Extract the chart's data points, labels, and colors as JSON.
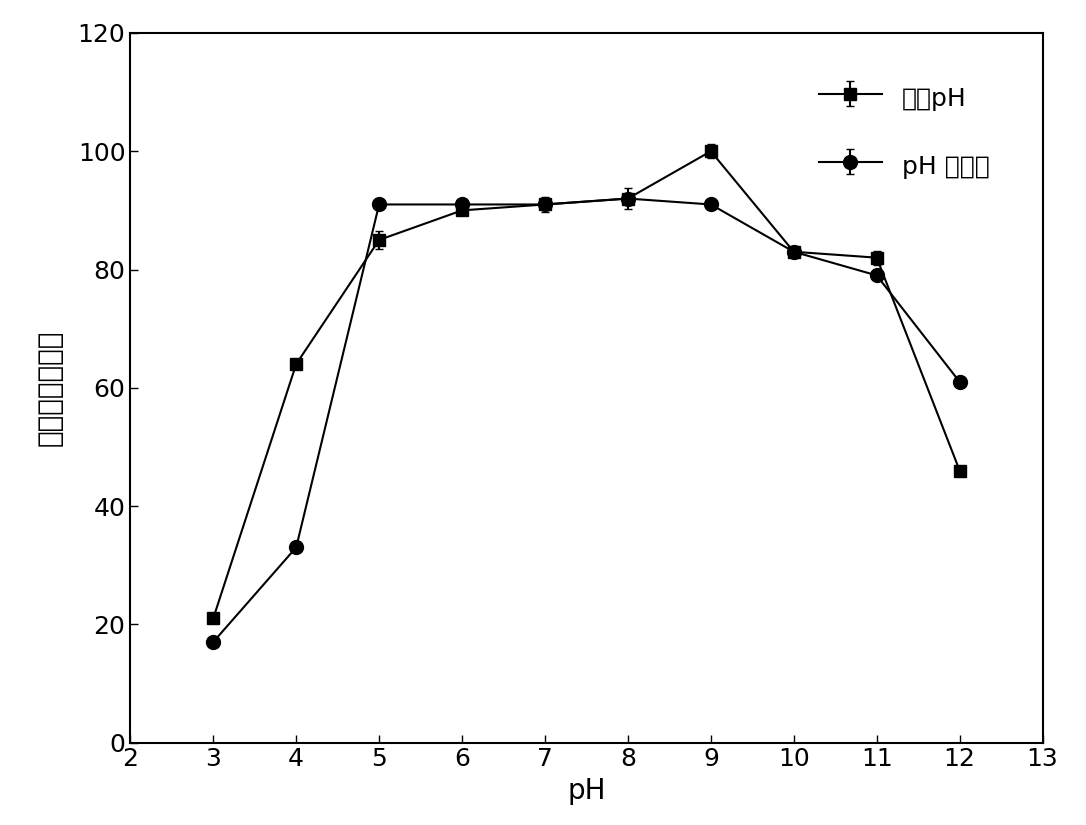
{
  "series1_label": "最适pH",
  "series2_label": "pH 稳定性",
  "series1_x": [
    3,
    4,
    5,
    6,
    7,
    8,
    9,
    10,
    11,
    12
  ],
  "series1_y": [
    21,
    64,
    85,
    90,
    91,
    92,
    100,
    83,
    82,
    46
  ],
  "series1_yerr": [
    0.5,
    0.5,
    1.5,
    0.8,
    1.2,
    1.8,
    1.2,
    0.8,
    1.2,
    0.8
  ],
  "series2_x": [
    3,
    4,
    5,
    6,
    7,
    8,
    9,
    10,
    11,
    12
  ],
  "series2_y": [
    17,
    33,
    91,
    91,
    91,
    92,
    91,
    83,
    79,
    61
  ],
  "series2_yerr": [
    0.5,
    0.5,
    0.5,
    0.5,
    0.5,
    0.5,
    0.5,
    0.5,
    0.5,
    0.5
  ],
  "xlabel": "pH",
  "ylabel": "相对活力（％）",
  "xlim": [
    2,
    13
  ],
  "ylim": [
    0,
    120
  ],
  "xticks": [
    2,
    3,
    4,
    5,
    6,
    7,
    8,
    9,
    10,
    11,
    12,
    13
  ],
  "yticks": [
    0,
    20,
    40,
    60,
    80,
    100,
    120
  ],
  "color": "#000000",
  "marker1": "s",
  "marker2": "o",
  "markersize1": 8,
  "markersize2": 10,
  "linewidth": 1.5,
  "legend_fontsize": 18,
  "axis_fontsize": 20,
  "tick_fontsize": 18
}
